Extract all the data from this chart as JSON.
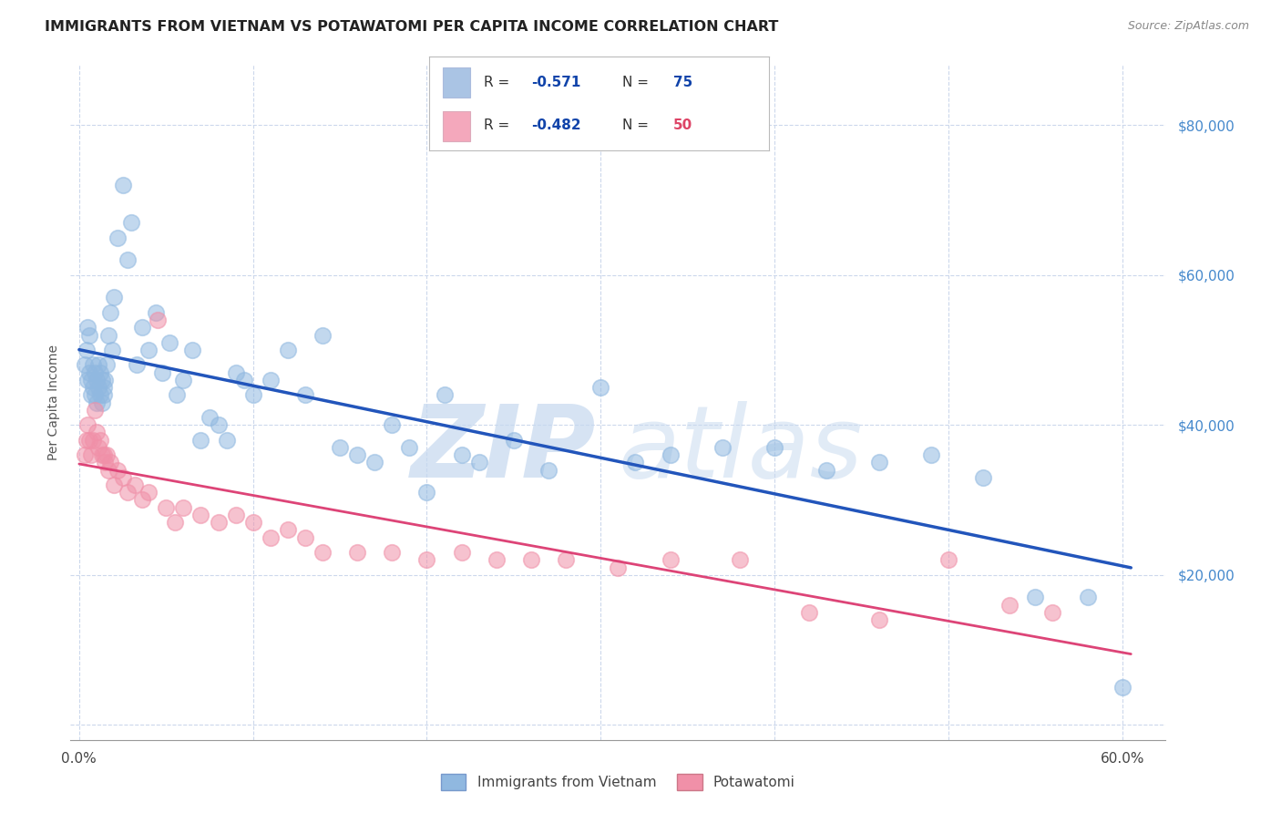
{
  "title": "IMMIGRANTS FROM VIETNAM VS POTAWATOMI PER CAPITA INCOME CORRELATION CHART",
  "source": "Source: ZipAtlas.com",
  "ylabel": "Per Capita Income",
  "y_tick_labels": [
    "$20,000",
    "$40,000",
    "$60,000",
    "$80,000"
  ],
  "y_tick_values": [
    20000,
    40000,
    60000,
    80000
  ],
  "xlim": [
    -0.005,
    0.625
  ],
  "ylim": [
    -2000,
    88000
  ],
  "legend_color1": "#aac4e4",
  "legend_color2": "#f4a8bc",
  "scatter_color1": "#90b8e0",
  "scatter_color2": "#f090a8",
  "line_color1": "#2255bb",
  "line_color2": "#dd4477",
  "watermark_zip": "ZIP",
  "watermark_atlas": "atlas",
  "background_color": "#ffffff",
  "grid_color": "#ccd8ec",
  "series1_x": [
    0.003,
    0.004,
    0.005,
    0.005,
    0.006,
    0.006,
    0.007,
    0.007,
    0.008,
    0.008,
    0.009,
    0.009,
    0.01,
    0.01,
    0.011,
    0.011,
    0.012,
    0.012,
    0.013,
    0.013,
    0.014,
    0.014,
    0.015,
    0.016,
    0.017,
    0.018,
    0.019,
    0.02,
    0.022,
    0.025,
    0.028,
    0.03,
    0.033,
    0.036,
    0.04,
    0.044,
    0.048,
    0.052,
    0.056,
    0.06,
    0.065,
    0.07,
    0.075,
    0.08,
    0.085,
    0.09,
    0.095,
    0.1,
    0.11,
    0.12,
    0.13,
    0.14,
    0.15,
    0.16,
    0.17,
    0.18,
    0.19,
    0.2,
    0.21,
    0.22,
    0.23,
    0.25,
    0.27,
    0.3,
    0.32,
    0.34,
    0.37,
    0.4,
    0.43,
    0.46,
    0.49,
    0.52,
    0.55,
    0.58,
    0.6
  ],
  "series1_y": [
    48000,
    50000,
    53000,
    46000,
    52000,
    47000,
    46000,
    44000,
    48000,
    45000,
    47000,
    44000,
    46000,
    43000,
    45000,
    48000,
    44000,
    47000,
    46000,
    43000,
    45000,
    44000,
    46000,
    48000,
    52000,
    55000,
    50000,
    57000,
    65000,
    72000,
    62000,
    67000,
    48000,
    53000,
    50000,
    55000,
    47000,
    51000,
    44000,
    46000,
    50000,
    38000,
    41000,
    40000,
    38000,
    47000,
    46000,
    44000,
    46000,
    50000,
    44000,
    52000,
    37000,
    36000,
    35000,
    40000,
    37000,
    31000,
    44000,
    36000,
    35000,
    38000,
    34000,
    45000,
    35000,
    36000,
    37000,
    37000,
    34000,
    35000,
    36000,
    33000,
    17000,
    17000,
    5000
  ],
  "series2_x": [
    0.003,
    0.004,
    0.005,
    0.006,
    0.007,
    0.008,
    0.009,
    0.01,
    0.011,
    0.012,
    0.013,
    0.014,
    0.015,
    0.016,
    0.017,
    0.018,
    0.02,
    0.022,
    0.025,
    0.028,
    0.032,
    0.036,
    0.04,
    0.045,
    0.05,
    0.055,
    0.06,
    0.07,
    0.08,
    0.09,
    0.1,
    0.11,
    0.12,
    0.13,
    0.14,
    0.16,
    0.18,
    0.2,
    0.22,
    0.24,
    0.26,
    0.28,
    0.31,
    0.34,
    0.38,
    0.42,
    0.46,
    0.5,
    0.535,
    0.56
  ],
  "series2_y": [
    36000,
    38000,
    40000,
    38000,
    36000,
    38000,
    42000,
    39000,
    37000,
    38000,
    36000,
    36000,
    35000,
    36000,
    34000,
    35000,
    32000,
    34000,
    33000,
    31000,
    32000,
    30000,
    31000,
    54000,
    29000,
    27000,
    29000,
    28000,
    27000,
    28000,
    27000,
    25000,
    26000,
    25000,
    23000,
    23000,
    23000,
    22000,
    23000,
    22000,
    22000,
    22000,
    21000,
    22000,
    22000,
    15000,
    14000,
    22000,
    16000,
    15000
  ]
}
